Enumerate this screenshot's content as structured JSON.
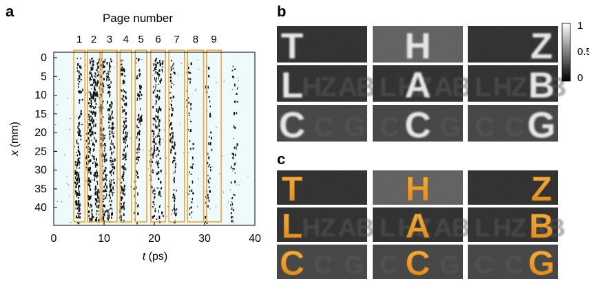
{
  "panel_labels": {
    "a": "a",
    "b": "b",
    "c": "c"
  },
  "chart_data": {
    "type": "scatter",
    "title": "Page number",
    "page_numbers": [
      "1",
      "2",
      "3",
      "4",
      "5",
      "6",
      "7",
      "8",
      "9"
    ],
    "xlabel_var": "t",
    "xlabel_unit": " (ps)",
    "ylabel_var": "x",
    "ylabel_unit": " (mm)",
    "xlim": [
      0,
      40
    ],
    "ylim": [
      0,
      44
    ],
    "y_inverted": true,
    "x_ticks": [
      "0",
      "10",
      "20",
      "30",
      "40"
    ],
    "y_ticks": [
      "0",
      "5",
      "10",
      "15",
      "20",
      "25",
      "30",
      "35",
      "40"
    ],
    "page_windows_ps": [
      [
        4.0,
        6.2
      ],
      [
        6.7,
        9.2
      ],
      [
        9.6,
        12.6
      ],
      [
        13.2,
        15.5
      ],
      [
        16.2,
        18.5
      ],
      [
        19.3,
        22.2
      ],
      [
        22.9,
        26.0
      ],
      [
        26.6,
        29.8
      ],
      [
        30.4,
        33.3
      ]
    ],
    "echo_lines_ps": [
      4.9,
      7.1,
      8.2,
      9.7,
      11.2,
      13.8,
      16.6,
      19.8,
      20.9,
      23.6,
      27.0,
      30.6,
      35.8
    ],
    "colormap_ticks": [
      "1",
      "0.5",
      "0"
    ],
    "recovered_letters": [
      [
        "T",
        "H",
        "Z"
      ],
      [
        "L",
        "A",
        "B"
      ],
      [
        "C",
        "C",
        "G"
      ]
    ],
    "colors": {
      "window_outline": "#e8a53c",
      "letter_fill": "#e39a2a",
      "plot_background": "#eefafc",
      "speckle": "#111111"
    }
  }
}
